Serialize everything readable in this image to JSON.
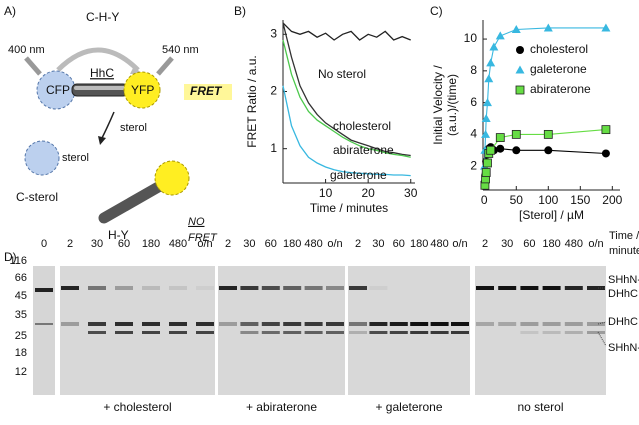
{
  "panel_labels": [
    "A)",
    "B)",
    "C)",
    "D)"
  ],
  "diagram": {
    "top_label": "C-H-Y",
    "excitation": "400 nm",
    "emission": "540 nm",
    "cfp": "CFP",
    "hhc": "HhC",
    "yfp": "YFP",
    "fret": "FRET",
    "arrow_label": "sterol",
    "sterol": "sterol",
    "c_sterol": "C-sterol",
    "h_y": "H-Y",
    "no_fret": [
      "NO",
      "FRET"
    ]
  },
  "chart_data": [
    {
      "type": "line",
      "ylabel": "FRET Ratio / a.u.",
      "xlabel": "Time / minutes",
      "x": [
        0,
        2,
        4,
        6,
        8,
        10,
        12,
        14,
        16,
        18,
        20,
        22,
        24,
        26,
        28,
        30
      ],
      "xlim": [
        0,
        31
      ],
      "ylim": [
        0.4,
        3.25
      ],
      "xticks": [
        10,
        20,
        30
      ],
      "yticks": [
        1,
        2,
        3
      ],
      "series": [
        {
          "name": "No sterol",
          "color": "#222222",
          "values": [
            3.2,
            3.05,
            3.0,
            3.05,
            2.95,
            3.02,
            2.9,
            3.0,
            3.05,
            2.9,
            3.0,
            2.95,
            3.05,
            2.9,
            2.96,
            2.9
          ]
        },
        {
          "name": "cholesterol",
          "color": "#333333",
          "values": [
            3.2,
            2.6,
            2.1,
            1.8,
            1.6,
            1.45,
            1.35,
            1.25,
            1.15,
            1.1,
            1.05,
            1.0,
            0.95,
            0.93,
            0.9,
            0.88
          ]
        },
        {
          "name": "abiraterone",
          "color": "#4cc94c",
          "values": [
            2.9,
            2.3,
            1.9,
            1.65,
            1.5,
            1.4,
            1.3,
            1.2,
            1.12,
            1.05,
            1.0,
            0.97,
            0.93,
            0.9,
            0.88,
            0.85
          ]
        },
        {
          "name": "galeterone",
          "color": "#38b8e0",
          "values": [
            2.1,
            1.4,
            1.05,
            0.85,
            0.75,
            0.68,
            0.63,
            0.6,
            0.58,
            0.57,
            0.56,
            0.55,
            0.55,
            0.54,
            0.54,
            0.53
          ]
        }
      ]
    },
    {
      "type": "scatter",
      "ylabel": [
        "Initial Velocity /",
        "(a.u.)/(time)"
      ],
      "xlabel": "[Sterol] / µM",
      "xlim": [
        -2,
        212
      ],
      "ylim": [
        0.5,
        11.2
      ],
      "xticks": [
        0,
        50,
        100,
        150,
        200
      ],
      "yticks": [
        2,
        4,
        6,
        8,
        10
      ],
      "legend": "upper right",
      "series": [
        {
          "name": "cholesterol",
          "color": "#000000",
          "marker": "circle",
          "x": [
            1,
            2,
            3,
            5,
            7,
            10,
            15,
            25,
            50,
            100,
            190
          ],
          "values": [
            1.0,
            1.5,
            2.3,
            2.9,
            3.1,
            3.2,
            3.0,
            3.1,
            3.0,
            3.0,
            2.8
          ]
        },
        {
          "name": "galeterone",
          "color": "#38b8e0",
          "marker": "triangle",
          "x": [
            0.5,
            1,
            2,
            3,
            5,
            7,
            10,
            15,
            25,
            50,
            100,
            190
          ],
          "values": [
            2.0,
            3.0,
            4.0,
            5.0,
            6.0,
            7.5,
            8.5,
            9.5,
            10.2,
            10.6,
            10.7,
            10.7
          ]
        },
        {
          "name": "abiraterone",
          "color": "#66dd44",
          "marker": "square",
          "x": [
            1,
            2,
            3,
            5,
            7,
            10,
            25,
            50,
            100,
            190
          ],
          "values": [
            0.8,
            1.2,
            1.6,
            2.2,
            2.8,
            3.0,
            3.8,
            4.0,
            4.0,
            4.3
          ]
        }
      ]
    }
  ],
  "gel": {
    "markers": [
      "116",
      "66",
      "45",
      "35",
      "25",
      "18",
      "12"
    ],
    "lane_0": "0",
    "times": [
      "2",
      "30",
      "60",
      "180",
      "480",
      "o/n"
    ],
    "groups": [
      "+ cholesterol",
      "+ abiraterone",
      "+ galeterone",
      "no sterol"
    ],
    "time_label": [
      "Time /",
      "minutes"
    ],
    "band_labels": [
      "SHhN-",
      "DHhC",
      "DHhC",
      "SHhN-X"
    ]
  }
}
